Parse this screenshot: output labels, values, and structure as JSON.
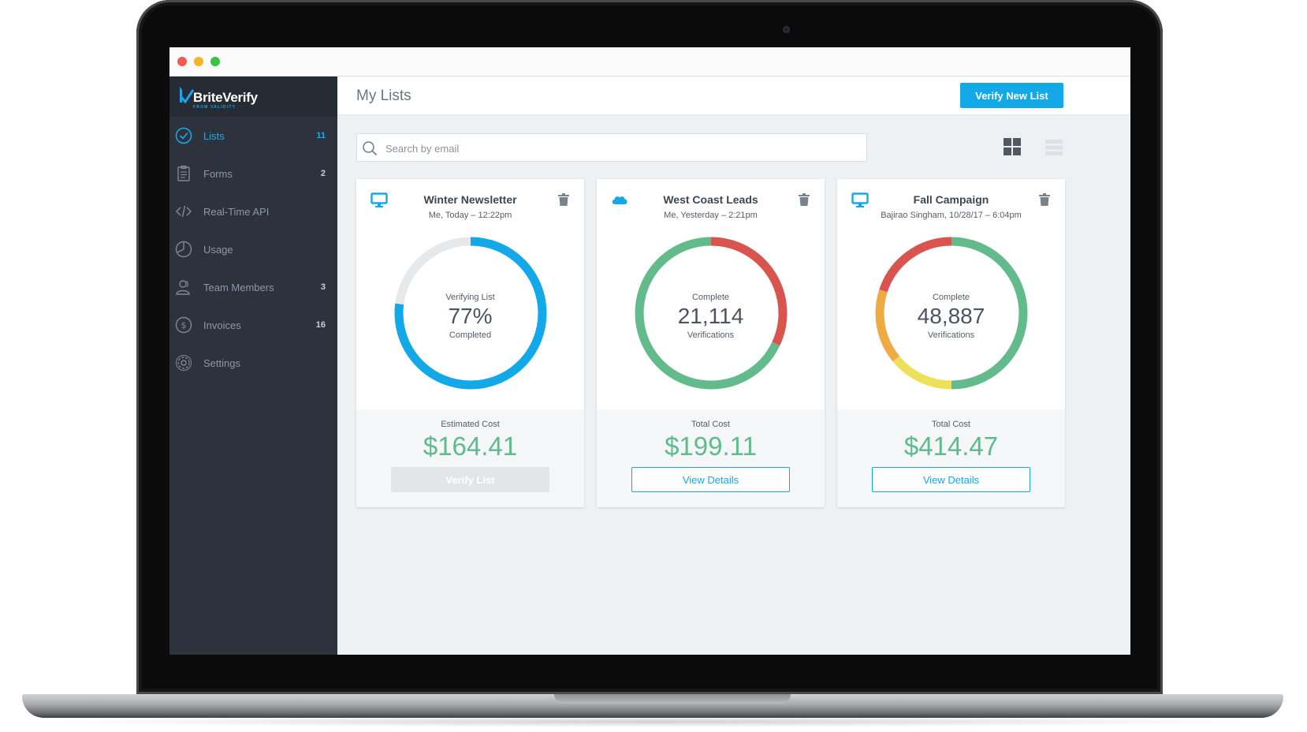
{
  "brand": {
    "name": "BriteVerify",
    "subtitle": "FROM VALIDITY"
  },
  "sidebar": {
    "items": [
      {
        "label": "Lists",
        "count": "11",
        "icon": "check-circle-icon"
      },
      {
        "label": "Forms",
        "count": "2",
        "icon": "clipboard-icon"
      },
      {
        "label": "Real-Time API",
        "count": "",
        "icon": "code-icon"
      },
      {
        "label": "Usage",
        "count": "",
        "icon": "pie-chart-icon"
      },
      {
        "label": "Team Members",
        "count": "3",
        "icon": "users-icon"
      },
      {
        "label": "Invoices",
        "count": "16",
        "icon": "dollar-circle-icon"
      },
      {
        "label": "Settings",
        "count": "",
        "icon": "gear-icon"
      }
    ]
  },
  "header": {
    "title": "My Lists",
    "primary_button": "Verify New List"
  },
  "search": {
    "placeholder": "Search by email"
  },
  "colors": {
    "accent": "#13a8e8",
    "success": "#5dbb8c",
    "danger": "#d9534f",
    "warning": "#efaa44",
    "yellow": "#ede05a",
    "sidebar": "#2d333d"
  },
  "cards": [
    {
      "title": "Winter Newsletter",
      "subtitle": "Me, Today – 12:22pm",
      "source_icon": "monitor-icon",
      "donut_top": "Verifying List",
      "donut_value": "77%",
      "donut_bottom": "Completed",
      "progress": 0.77,
      "cost_label": "Estimated Cost",
      "cost_value": "$164.41",
      "button": "Verify List",
      "button_disabled": true
    },
    {
      "title": "West Coast Leads",
      "subtitle": "Me, Yesterday – 2:21pm",
      "source_icon": "salesforce-cloud-icon",
      "donut_top": "Complete",
      "donut_value": "21,114",
      "donut_bottom": "Verifications",
      "segments": [
        {
          "color": "#d9534f",
          "fraction": 0.32
        },
        {
          "color": "#63bb8c",
          "fraction": 0.68
        }
      ],
      "cost_label": "Total Cost",
      "cost_value": "$199.11",
      "button": "View Details",
      "button_disabled": false
    },
    {
      "title": "Fall Campaign",
      "subtitle": "Bajirao Singham, 10/28/17 – 6:04pm",
      "source_icon": "monitor-icon",
      "donut_top": "Complete",
      "donut_value": "48,887",
      "donut_bottom": "Verifications",
      "segments": [
        {
          "color": "#63bb8c",
          "fraction": 0.5
        },
        {
          "color": "#ede05a",
          "fraction": 0.14
        },
        {
          "color": "#efaa44",
          "fraction": 0.16
        },
        {
          "color": "#d9534f",
          "fraction": 0.2
        }
      ],
      "cost_label": "Total Cost",
      "cost_value": "$414.47",
      "button": "View Details",
      "button_disabled": false
    }
  ]
}
